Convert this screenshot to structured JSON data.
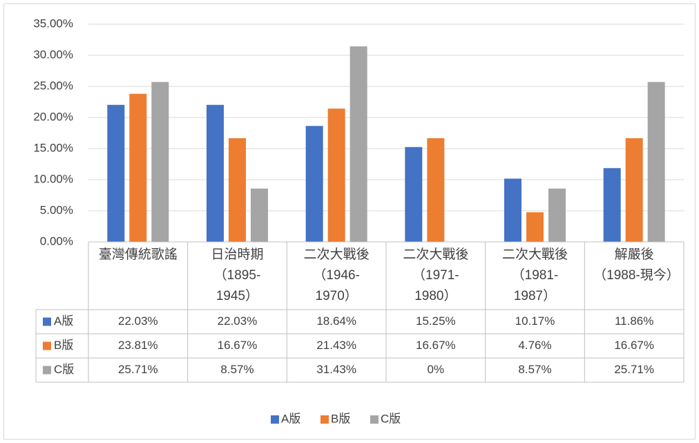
{
  "chart_data": {
    "type": "bar",
    "categories": [
      "臺灣傳統歌謠",
      "日治時期（1895-1945）",
      "二次大戰後（1946-1970）",
      "二次大戰後（1971-1980）",
      "二次大戰後（1981-1987）",
      "解嚴後（1988-現今）"
    ],
    "series": [
      {
        "name": "A版",
        "color": "#4472c4",
        "values": [
          22.03,
          22.03,
          18.64,
          15.25,
          10.17,
          11.86
        ],
        "value_labels": [
          "22.03%",
          "22.03%",
          "18.64%",
          "15.25%",
          "10.17%",
          "11.86%"
        ]
      },
      {
        "name": "B版",
        "color": "#ed7d31",
        "values": [
          23.81,
          16.67,
          21.43,
          16.67,
          4.76,
          16.67
        ],
        "value_labels": [
          "23.81%",
          "16.67%",
          "21.43%",
          "16.67%",
          "4.76%",
          "16.67%"
        ]
      },
      {
        "name": "C版",
        "color": "#a5a5a5",
        "values": [
          25.71,
          8.57,
          31.43,
          0,
          8.57,
          25.71
        ],
        "value_labels": [
          "25.71%",
          "8.57%",
          "31.43%",
          "0%",
          "8.57%",
          "25.71%"
        ]
      }
    ],
    "ylim": [
      0,
      35
    ],
    "yticks": [
      {
        "value": 0,
        "label": "0.00%"
      },
      {
        "value": 5,
        "label": "5.00%"
      },
      {
        "value": 10,
        "label": "10.00%"
      },
      {
        "value": 15,
        "label": "15.00%"
      },
      {
        "value": 20,
        "label": "20.00%"
      },
      {
        "value": 25,
        "label": "25.00%"
      },
      {
        "value": 30,
        "label": "30.00%"
      },
      {
        "value": 35,
        "label": "35.00%"
      }
    ],
    "grid": true,
    "legend": "bottom"
  }
}
